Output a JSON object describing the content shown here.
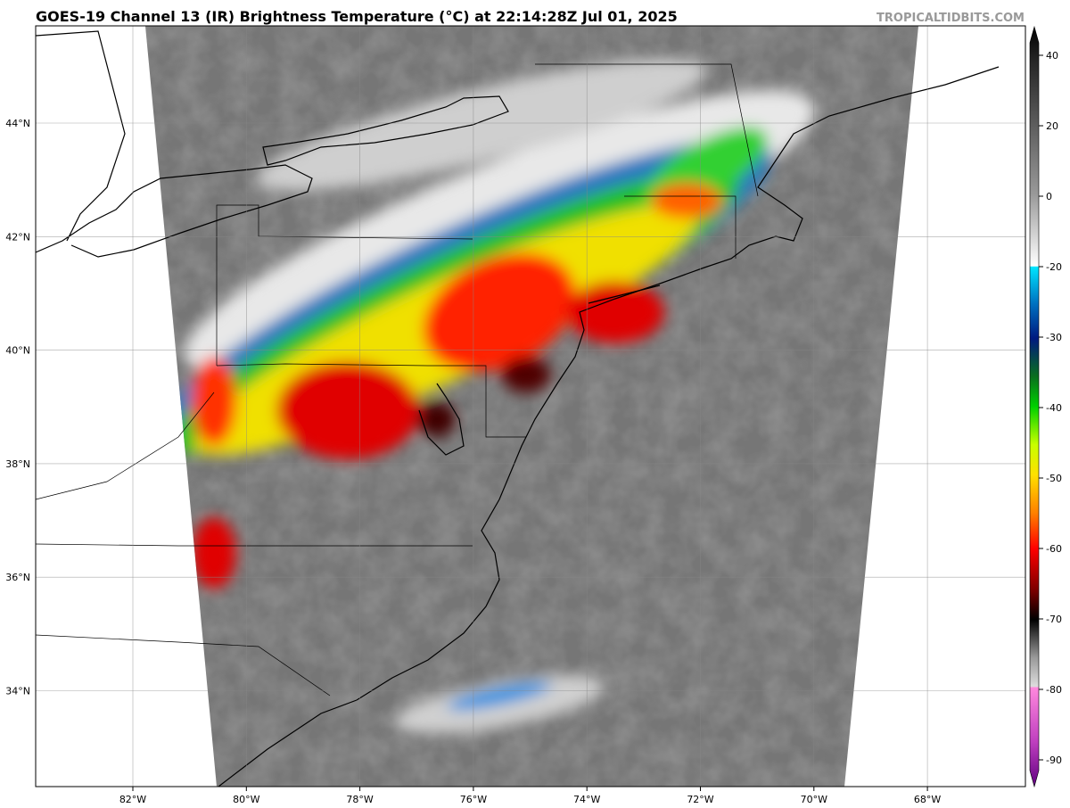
{
  "header": {
    "title": "GOES-19 Channel 13 (IR) Brightness Temperature (°C) at 22:14:28Z Jul 01, 2025",
    "credit": "TROPICALTIDBITS.COM"
  },
  "map": {
    "lat_labels": [
      "44°N",
      "42°N",
      "40°N",
      "38°N",
      "36°N",
      "34°N"
    ],
    "lon_labels": [
      "82°W",
      "80°W",
      "78°W",
      "76°W",
      "74°W",
      "72°W",
      "70°W",
      "68°W"
    ]
  },
  "colorbar": {
    "ticks": [
      40,
      20,
      0,
      -20,
      -30,
      -40,
      -50,
      -60,
      -70,
      -80,
      -90
    ]
  }
}
